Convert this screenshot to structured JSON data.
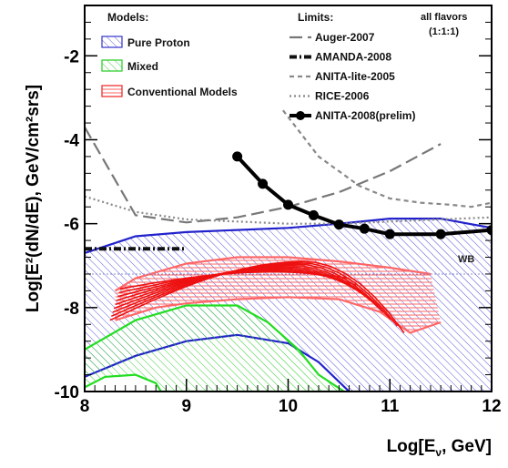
{
  "chart_data": {
    "type": "line",
    "xlabel_main": "Log[E",
    "xlabel_sub": "ν",
    "xlabel_rest": ", GeV]",
    "ylabel": "Log[E²(dN/dE), GeV/cm²srs]",
    "xlim": [
      8,
      12
    ],
    "ylim": [
      -10,
      -0.8
    ],
    "x_ticks": [
      8,
      9,
      10,
      11,
      12
    ],
    "x_tick_labels": [
      "8",
      "9",
      "10",
      "11",
      "12"
    ],
    "y_ticks": [
      -10,
      -8,
      -6,
      -4,
      -2
    ],
    "y_tick_labels": [
      "-10",
      "-8",
      "-6",
      "-4",
      "-2"
    ],
    "corner_note": [
      "all flavors",
      "(1:1:1)"
    ],
    "wb_label": "WB",
    "models_title": "Models:",
    "limits_title": "Limits:",
    "models": [
      {
        "name": "Pure Proton",
        "color": "#3333cc",
        "fill": "#4a4ad8"
      },
      {
        "name": "Mixed",
        "color": "#22cc22",
        "fill": "#33cc33"
      },
      {
        "name": "Conventional Models",
        "color": "#ee2222",
        "fill": "#ee3333"
      }
    ],
    "series": [
      {
        "name": "Auger-2007",
        "style": "longdash",
        "color": "#777777",
        "x": [
          8.0,
          8.5,
          9.0,
          9.5,
          10.0,
          10.5,
          11.0,
          11.5
        ],
        "y": [
          -3.7,
          -5.8,
          -5.97,
          -5.85,
          -5.6,
          -5.25,
          -4.75,
          -4.1
        ]
      },
      {
        "name": "AMANDA-2008",
        "style": "dashdot",
        "color": "#111111",
        "x": [
          8.0,
          9.0
        ],
        "y": [
          -6.6,
          -6.6
        ]
      },
      {
        "name": "ANITA-lite-2005",
        "style": "dashed",
        "color": "#888888",
        "x": [
          9.95,
          10.3,
          10.7,
          11.0,
          11.3,
          11.6,
          11.8,
          12.0
        ],
        "y": [
          -3.3,
          -4.4,
          -5.1,
          -5.4,
          -5.5,
          -5.55,
          -5.6,
          -5.5
        ]
      },
      {
        "name": "RICE-2006",
        "style": "dotted",
        "color": "#888888",
        "x": [
          8.0,
          8.5,
          9.0,
          9.5,
          10.0,
          10.5,
          11.0,
          11.5,
          12.0
        ],
        "y": [
          -5.35,
          -5.72,
          -5.9,
          -5.95,
          -6.0,
          -6.0,
          -5.95,
          -5.9,
          -5.85
        ]
      },
      {
        "name": "ANITA-2008(prelim)",
        "style": "marker",
        "color": "#000000",
        "x": [
          9.5,
          9.75,
          10.0,
          10.25,
          10.5,
          10.75,
          11.0,
          11.5,
          12.0
        ],
        "y": [
          -4.4,
          -5.05,
          -5.55,
          -5.8,
          -6.02,
          -6.12,
          -6.25,
          -6.25,
          -6.15
        ]
      }
    ],
    "bands": {
      "pure_proton_upper": {
        "x": [
          8.0,
          8.25,
          8.5,
          9.0,
          9.5,
          10.0,
          10.5,
          11.0,
          11.5,
          12.0
        ],
        "y": [
          -6.7,
          -6.5,
          -6.3,
          -6.2,
          -6.15,
          -6.1,
          -6.0,
          -5.88,
          -5.88,
          -6.1
        ]
      },
      "pure_proton_lower": {
        "x": [
          8.0,
          8.5,
          9.0,
          9.5,
          10.0,
          10.3,
          10.6
        ],
        "y": [
          -9.65,
          -9.15,
          -8.8,
          -8.65,
          -8.85,
          -9.3,
          -10.0
        ]
      },
      "mixed_upper": {
        "x": [
          8.0,
          8.5,
          9.0,
          9.5,
          9.8,
          10.1,
          10.3,
          10.55
        ],
        "y": [
          -9.0,
          -8.3,
          -7.95,
          -7.95,
          -8.35,
          -9.0,
          -9.6,
          -10.0
        ]
      },
      "mixed_lower": {
        "x": [
          8.0,
          8.2,
          8.5,
          8.7,
          8.75
        ],
        "y": [
          -9.9,
          -9.65,
          -9.6,
          -9.8,
          -10.0
        ]
      },
      "conventional_upper": {
        "x": [
          8.3,
          8.5,
          9.0,
          9.5,
          10.0,
          10.5,
          11.0,
          11.4
        ],
        "y": [
          -7.6,
          -7.3,
          -6.95,
          -6.8,
          -6.8,
          -6.9,
          -7.05,
          -7.2
        ]
      },
      "conventional_lower": {
        "x": [
          8.3,
          8.7,
          9.0,
          9.5,
          10.0,
          10.5,
          10.9,
          11.2,
          11.5
        ],
        "y": [
          -8.3,
          -8.0,
          -7.9,
          -7.8,
          -7.75,
          -7.8,
          -8.1,
          -8.6,
          -8.35
        ]
      }
    }
  }
}
